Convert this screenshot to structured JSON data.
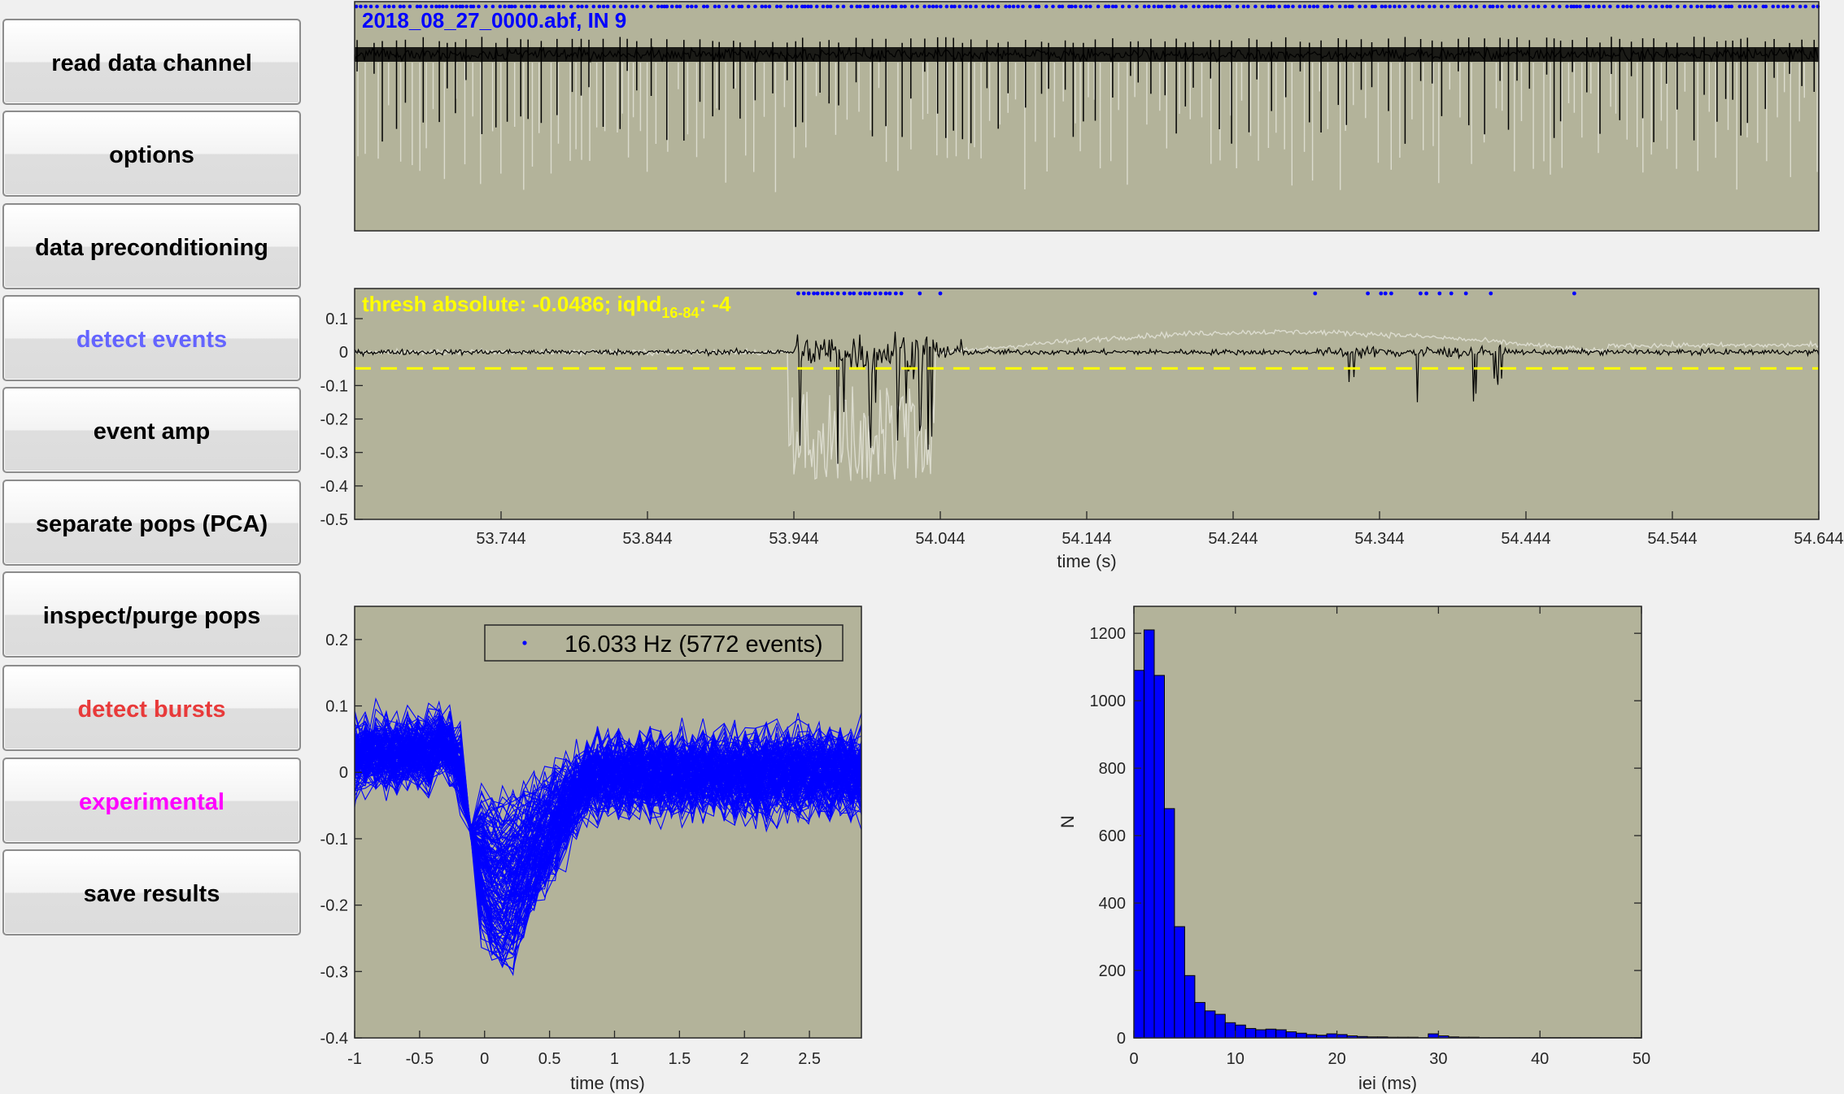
{
  "buttons": [
    {
      "label": "read data channel",
      "color": "#000000"
    },
    {
      "label": "options",
      "color": "#000000"
    },
    {
      "label": "data preconditioning",
      "color": "#000000"
    },
    {
      "label": "detect events",
      "color": "#6464ff"
    },
    {
      "label": "event amp",
      "color": "#000000"
    },
    {
      "label": "separate pops (PCA)",
      "color": "#000000"
    },
    {
      "label": "inspect/purge pops",
      "color": "#000000"
    },
    {
      "label": "detect bursts",
      "color": "#e83a3a"
    },
    {
      "label": "experimental",
      "color": "#ff00ff"
    },
    {
      "label": "save results",
      "color": "#000000"
    }
  ],
  "colors": {
    "axes_bg": "#b3b39a",
    "trace": "#000000",
    "raw_trace": "#dcdccf",
    "events": "#0000ff",
    "threshold": "#ffff00",
    "figure_bg": "#f0f0f0"
  },
  "overview_plot": {
    "title": "2018_08_27_0000.abf, IN 9"
  },
  "detail_plot": {
    "annotation_main": "thresh absolute: -0.0486; iqhd",
    "annotation_sub": "16-84",
    "annotation_tail": ": -4",
    "xlabel": "time (s)",
    "ylabel": "",
    "xlim": [
      53.644,
      54.644
    ],
    "ylim": [
      -0.5,
      0.19
    ],
    "xticks": [
      "53.744",
      "53.844",
      "53.944",
      "54.044",
      "54.144",
      "54.244",
      "54.344",
      "54.444",
      "54.544",
      "54.644"
    ],
    "yticks": [
      "0.1",
      "0",
      "-0.1",
      "-0.2",
      "-0.3",
      "-0.4",
      "-0.5"
    ],
    "threshold": -0.0486
  },
  "waveform_plot": {
    "legend": "16.033 Hz (5772 events)",
    "xlabel": "time (ms)",
    "ylabel": "",
    "xlim": [
      -1,
      2.9
    ],
    "ylim": [
      -0.4,
      0.25
    ],
    "xticks": [
      "-1",
      "-0.5",
      "0",
      "0.5",
      "1",
      "1.5",
      "2",
      "2.5"
    ],
    "yticks": [
      "0.2",
      "0.1",
      "0",
      "-0.1",
      "-0.2",
      "-0.3",
      "-0.4"
    ]
  },
  "chart_data": [
    {
      "type": "line",
      "title": "",
      "xlabel": "time (s)",
      "ylabel": "",
      "xlim": [
        53.644,
        54.644
      ],
      "ylim": [
        -0.5,
        0.19
      ],
      "threshold": -0.0486,
      "grid": false
    },
    {
      "type": "line",
      "title": "",
      "xlabel": "time (ms)",
      "ylabel": "",
      "xlim": [
        -1,
        2.9
      ],
      "ylim": [
        -0.4,
        0.25
      ],
      "legend": "16.033 Hz (5772 events)",
      "legend_position": "top-right",
      "grid": false
    },
    {
      "type": "bar",
      "title": "",
      "xlabel": "iei (ms)",
      "ylabel": "N",
      "xlim": [
        0,
        50
      ],
      "ylim": [
        0,
        1280
      ],
      "xticks": [
        "0",
        "10",
        "20",
        "30",
        "40",
        "50"
      ],
      "yticks": [
        "0",
        "200",
        "400",
        "600",
        "800",
        "1000",
        "1200"
      ],
      "bin_width": 1,
      "bin_starts": [
        0,
        1,
        2,
        3,
        4,
        5,
        6,
        7,
        8,
        9,
        10,
        11,
        12,
        13,
        14,
        15,
        16,
        17,
        18,
        19,
        20,
        21,
        22,
        23,
        24,
        25,
        26,
        27,
        28,
        29,
        30,
        31,
        32,
        33,
        34,
        35,
        36,
        37,
        38,
        39,
        40,
        41,
        42,
        43,
        44,
        45,
        46,
        47,
        48,
        49
      ],
      "values": [
        1090,
        1210,
        1075,
        680,
        330,
        185,
        105,
        80,
        70,
        45,
        38,
        28,
        24,
        26,
        24,
        18,
        14,
        10,
        8,
        12,
        10,
        6,
        4,
        3,
        3,
        2,
        2,
        2,
        1,
        12,
        6,
        3,
        2,
        2,
        1,
        1,
        1,
        1,
        1,
        1,
        1,
        1,
        1,
        1,
        1,
        1,
        1,
        1,
        1,
        1
      ],
      "grid": false
    }
  ]
}
